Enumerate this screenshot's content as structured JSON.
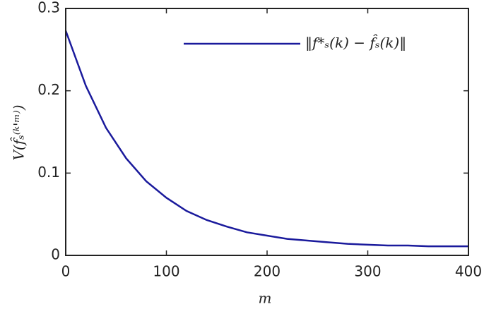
{
  "chart_data": {
    "type": "line",
    "x": [
      0,
      20,
      40,
      60,
      80,
      100,
      120,
      140,
      160,
      180,
      200,
      220,
      240,
      260,
      280,
      300,
      320,
      340,
      360,
      380,
      400
    ],
    "series": [
      {
        "name": "‖f*ₛ(k) − f̂ₛ(k)‖",
        "color": "#1a1a9c",
        "values": [
          0.273,
          0.206,
          0.155,
          0.118,
          0.09,
          0.07,
          0.054,
          0.043,
          0.035,
          0.028,
          0.024,
          0.02,
          0.018,
          0.016,
          0.014,
          0.013,
          0.012,
          0.012,
          0.011,
          0.011,
          0.011
        ]
      }
    ],
    "xlabel": "m",
    "ylabel": "V(f̂ₛ⁽ᵏ'ᵐ⁾)",
    "xlim": [
      0,
      400
    ],
    "xticks": [
      0,
      100,
      200,
      300,
      400
    ],
    "ylim": [
      0,
      0.3
    ],
    "yticks": [
      0,
      0.1,
      0.2,
      0.3
    ],
    "legend": "upper right"
  }
}
